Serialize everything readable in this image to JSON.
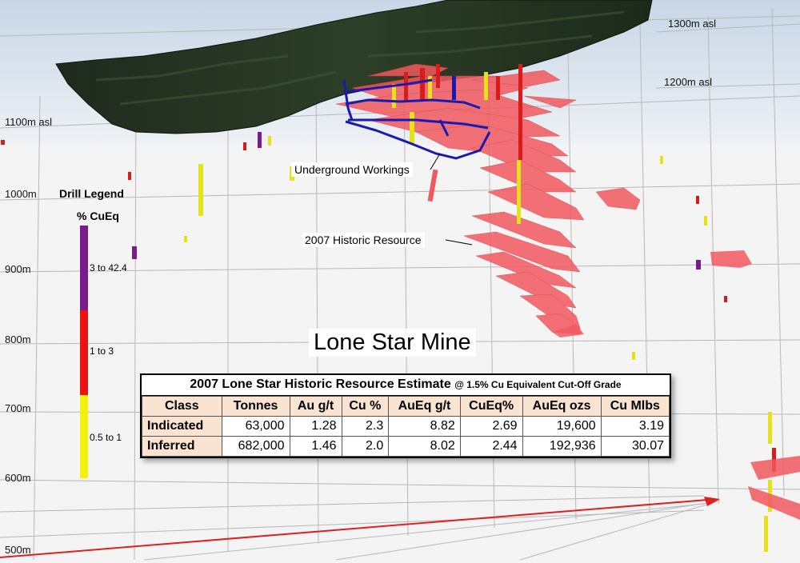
{
  "elevations": {
    "e1300": "1300m asl",
    "e1200": "1200m asl",
    "e1100": "1100m asl",
    "e1000": "1000m",
    "e900": "900m",
    "e800": "800m",
    "e700": "700m",
    "e600": "600m",
    "e500": "500m"
  },
  "callouts": {
    "underground": "Underground Workings",
    "historic": "2007 Historic Resource"
  },
  "title": "Lone Star Mine",
  "legend": {
    "title": "Drill Legend",
    "unit": "% CuEq",
    "bins": [
      {
        "label": "3 to 42.4",
        "color": "#7a1a8c"
      },
      {
        "label": "1 to 3",
        "color": "#ee1111"
      },
      {
        "label": "0.5 to 1",
        "color": "#f2f00c"
      }
    ]
  },
  "colors": {
    "resource_block": "#f2595f",
    "drillhole_high": "#dd1a1a",
    "drillhole_low": "#e6e21a",
    "workings": "#1a1ab0",
    "terrain": "#243220",
    "axis": "#dd2020"
  },
  "table": {
    "caption_main": "2007 Lone Star Historic Resource Estimate",
    "caption_sub": "@ 1.5% Cu Equivalent Cut-Off Grade",
    "headers": [
      "Class",
      "Tonnes",
      "Au g/t",
      "Cu %",
      "AuEq g/t",
      "CuEq%",
      "AuEq ozs",
      "Cu Mlbs"
    ],
    "rows": [
      [
        "Indicated",
        "63,000",
        "1.28",
        "2.3",
        "8.82",
        "2.69",
        "19,600",
        "3.19"
      ],
      [
        "Inferred",
        "682,000",
        "1.46",
        "2.0",
        "8.02",
        "2.44",
        "192,936",
        "30.07"
      ]
    ]
  }
}
